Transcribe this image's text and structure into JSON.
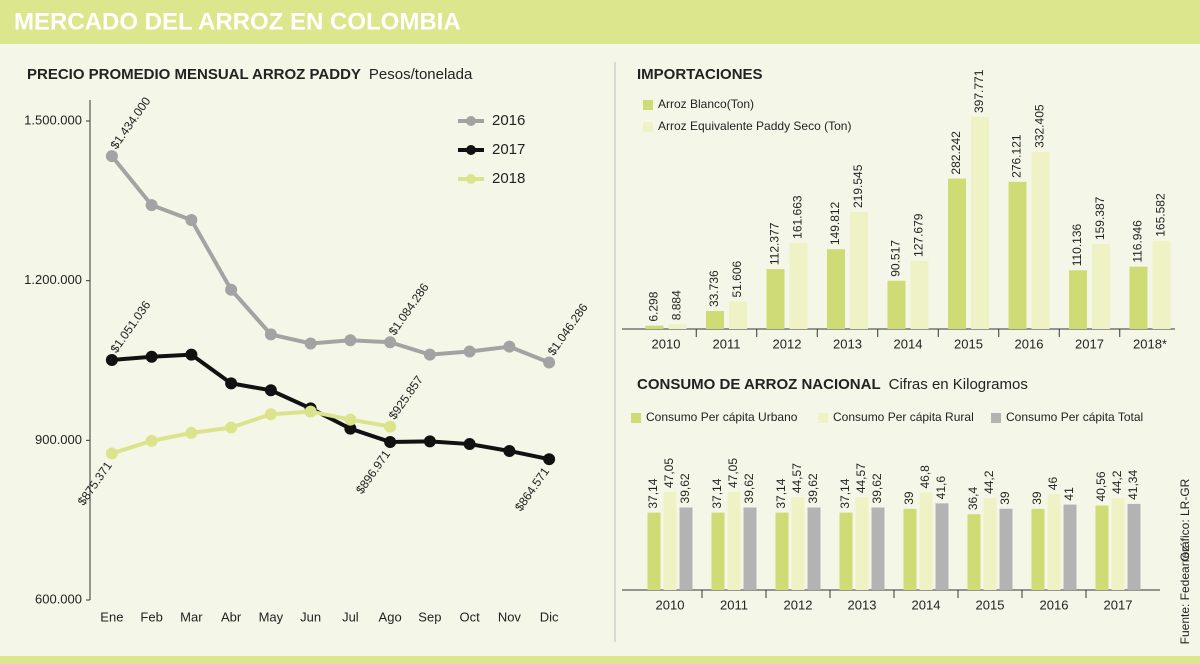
{
  "header": {
    "title": "MERCADO DEL ARROZ EN COLOMBIA"
  },
  "credits": {
    "graphic": "Gráfico: LR-GR",
    "source": "Fuente: Fedearroz"
  },
  "chart_data": [
    {
      "type": "line",
      "title": "PRECIO PROMEDIO MENSUAL ARROZ PADDY",
      "subtitle": "Pesos/tonelada",
      "categories": [
        "Ene",
        "Feb",
        "Mar",
        "Abr",
        "May",
        "Jun",
        "Jul",
        "Ago",
        "Sep",
        "Oct",
        "Nov",
        "Dic"
      ],
      "ylim": [
        600000,
        1500000
      ],
      "yticks": [
        {
          "value": 600000,
          "label": "600.000"
        },
        {
          "value": 900000,
          "label": "900.000"
        },
        {
          "value": 1200000,
          "label": "1.200.000"
        },
        {
          "value": 1500000,
          "label": "1.500.000"
        }
      ],
      "legend": "top-right",
      "series": [
        {
          "name": "2016",
          "color": "#a3a3a3",
          "values": [
            1434000,
            1342000,
            1314000,
            1183000,
            1099000,
            1082000,
            1088000,
            1084286,
            1061000,
            1067000,
            1076000,
            1046286
          ],
          "value_labels": [
            "$1.434.000",
            null,
            null,
            null,
            null,
            null,
            null,
            "$1.084.286",
            null,
            null,
            null,
            "$1.046.286"
          ]
        },
        {
          "name": "2017",
          "color": "#111111",
          "values": [
            1051036,
            1057000,
            1061000,
            1007000,
            994000,
            960000,
            922000,
            896971,
            898000,
            893000,
            880000,
            864571
          ],
          "value_labels": [
            "$1.051.036",
            null,
            null,
            null,
            null,
            null,
            null,
            "$896.971",
            null,
            null,
            null,
            "$864.571"
          ]
        },
        {
          "name": "2018",
          "color": "#dbe48c",
          "values": [
            875371,
            899000,
            914000,
            924000,
            949000,
            954000,
            939000,
            925857,
            null,
            null,
            null,
            null
          ],
          "value_labels": [
            "$875.371",
            null,
            null,
            null,
            null,
            null,
            null,
            "$925.857",
            null,
            null,
            null,
            null
          ]
        }
      ]
    },
    {
      "type": "bar",
      "title": "IMPORTACIONES",
      "categories": [
        "2010",
        "2011",
        "2012",
        "2013",
        "2014",
        "2015",
        "2016",
        "2017",
        "2018*"
      ],
      "series": [
        {
          "name": "Arroz Blanco(Ton)",
          "color": "#cfdb74",
          "values": [
            6298,
            33736,
            112377,
            149812,
            90517,
            282242,
            276121,
            110136,
            116946
          ],
          "value_labels": [
            "6.298",
            "33.736",
            "112.377",
            "149.812",
            "90.517",
            "282.242",
            "276.121",
            "110.136",
            "116.946"
          ]
        },
        {
          "name": "Arroz Equivalente Paddy Seco (Ton)",
          "color": "#eef2c4",
          "values": [
            8884,
            51606,
            161663,
            219545,
            127679,
            397771,
            332405,
            159387,
            165582
          ],
          "value_labels": [
            "8.884",
            "51.606",
            "161.663",
            "219.545",
            "127.679",
            "397.771",
            "332.405",
            "159.387",
            "165.582"
          ]
        }
      ]
    },
    {
      "type": "bar",
      "title": "CONSUMO DE ARROZ NACIONAL",
      "subtitle": "Cifras en Kilogramos",
      "categories": [
        "2010",
        "2011",
        "2012",
        "2013",
        "2014",
        "2015",
        "2016",
        "2017"
      ],
      "series": [
        {
          "name": "Consumo Per cápita Urbano",
          "color": "#cfdb74",
          "values": [
            37.14,
            37.14,
            37.14,
            37.14,
            39,
            36.4,
            39,
            40.56
          ],
          "value_labels": [
            "37,14",
            "37,14",
            "37,14",
            "37,14",
            "39",
            "36,4",
            "39",
            "40,56"
          ]
        },
        {
          "name": "Consumo Per cápita Rural",
          "color": "#eef2c4",
          "values": [
            47.05,
            47.05,
            44.57,
            44.57,
            46.8,
            44.2,
            46,
            44.2
          ],
          "value_labels": [
            "47,05",
            "47,05",
            "44,57",
            "44,57",
            "46,8",
            "44,2",
            "46",
            "44,2"
          ]
        },
        {
          "name": "Consumo Per cápita Total",
          "color": "#b3b3b3",
          "values": [
            39.62,
            39.62,
            39.62,
            39.62,
            41.6,
            39,
            41,
            41.34
          ],
          "value_labels": [
            "39,62",
            "39,62",
            "39,62",
            "39,62",
            "41,6",
            "39",
            "41",
            "41,34"
          ]
        }
      ]
    }
  ]
}
